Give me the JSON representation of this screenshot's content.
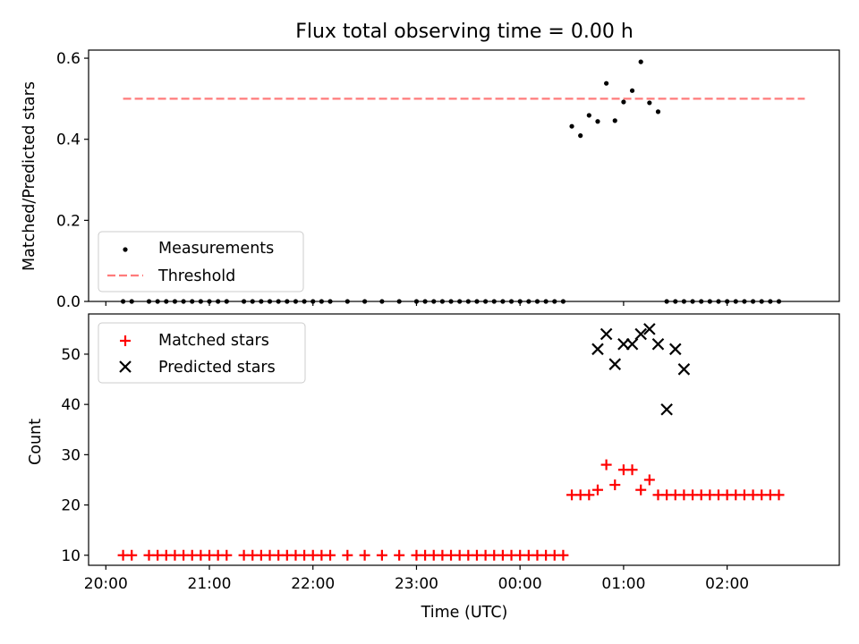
{
  "title": "Flux total observing time = 0.00 h",
  "colors": {
    "measurements": "#000000",
    "threshold": "#ff7b7b",
    "matched": "#ff0000",
    "predicted": "#000000",
    "axes": "#000000"
  },
  "chart_data": [
    {
      "type": "scatter",
      "panel": "top",
      "ylabel": "Matched/Predicted stars",
      "ylim": [
        0,
        0.62
      ],
      "yticks": [
        0.0,
        0.2,
        0.4,
        0.6
      ],
      "ytick_labels": [
        "0.0",
        "0.2",
        "0.4",
        "0.6"
      ],
      "legend_loc": "lower-left",
      "series": [
        {
          "name": "Measurements",
          "marker": "dot",
          "x": [
            "20:10",
            "20:15",
            "20:25",
            "20:30",
            "20:35",
            "20:40",
            "20:45",
            "20:50",
            "20:55",
            "21:00",
            "21:05",
            "21:10",
            "21:20",
            "21:25",
            "21:30",
            "21:35",
            "21:40",
            "21:45",
            "21:50",
            "21:55",
            "22:00",
            "22:05",
            "22:10",
            "22:20",
            "22:30",
            "22:40",
            "22:50",
            "23:00",
            "23:05",
            "23:10",
            "23:15",
            "23:20",
            "23:25",
            "23:30",
            "23:35",
            "23:40",
            "23:45",
            "23:50",
            "23:55",
            "00:00",
            "00:05",
            "00:10",
            "00:15",
            "00:20",
            "00:25",
            "00:30",
            "00:35",
            "00:40",
            "00:45",
            "00:50",
            "00:55",
            "01:00",
            "01:05",
            "01:10",
            "01:15",
            "01:20",
            "01:25",
            "01:30",
            "01:35",
            "01:40",
            "01:45",
            "01:50",
            "01:55",
            "02:00",
            "02:05",
            "02:10",
            "02:15",
            "02:20",
            "02:25",
            "02:30"
          ],
          "y": [
            0,
            0,
            0,
            0,
            0,
            0,
            0,
            0,
            0,
            0,
            0,
            0,
            0,
            0,
            0,
            0,
            0,
            0,
            0,
            0,
            0,
            0,
            0,
            0,
            0,
            0,
            0,
            0,
            0,
            0,
            0,
            0,
            0,
            0,
            0,
            0,
            0,
            0,
            0,
            0,
            0,
            0,
            0,
            0,
            0,
            0.432,
            0.409,
            0.459,
            0.444,
            0.538,
            0.446,
            0.492,
            0.52,
            0.591,
            0.49,
            0.468,
            0,
            0,
            0,
            0,
            0,
            0,
            0,
            0,
            0,
            0,
            0,
            0,
            0,
            0
          ]
        },
        {
          "name": "Threshold",
          "style": "dashed",
          "x": [
            "20:10",
            "02:45"
          ],
          "y": [
            0.5,
            0.5
          ]
        }
      ]
    },
    {
      "type": "scatter",
      "panel": "bottom",
      "xlabel": "Time (UTC)",
      "ylabel": "Count",
      "ylim": [
        8,
        58
      ],
      "yticks": [
        10,
        20,
        30,
        40,
        50
      ],
      "ytick_labels": [
        "10",
        "20",
        "30",
        "40",
        "50"
      ],
      "xticks": [
        "20:00",
        "21:00",
        "22:00",
        "23:00",
        "00:00",
        "01:00",
        "02:00"
      ],
      "xtick_labels": [
        "20:00",
        "21:00",
        "22:00",
        "23:00",
        "00:00",
        "01:00",
        "02:00"
      ],
      "x_range": [
        "19:50",
        "03:05"
      ],
      "legend_loc": "upper-left",
      "series": [
        {
          "name": "Matched stars",
          "marker": "plus",
          "x": [
            "20:10",
            "20:15",
            "20:25",
            "20:30",
            "20:35",
            "20:40",
            "20:45",
            "20:50",
            "20:55",
            "21:00",
            "21:05",
            "21:10",
            "21:20",
            "21:25",
            "21:30",
            "21:35",
            "21:40",
            "21:45",
            "21:50",
            "21:55",
            "22:00",
            "22:05",
            "22:10",
            "22:20",
            "22:30",
            "22:40",
            "22:50",
            "23:00",
            "23:05",
            "23:10",
            "23:15",
            "23:20",
            "23:25",
            "23:30",
            "23:35",
            "23:40",
            "23:45",
            "23:50",
            "23:55",
            "00:00",
            "00:05",
            "00:10",
            "00:15",
            "00:20",
            "00:25",
            "00:30",
            "00:35",
            "00:40",
            "00:45",
            "00:50",
            "00:55",
            "01:00",
            "01:05",
            "01:10",
            "01:15",
            "01:20",
            "01:25",
            "01:30",
            "01:35",
            "01:40",
            "01:45",
            "01:50",
            "01:55",
            "02:00",
            "02:05",
            "02:10",
            "02:15",
            "02:20",
            "02:25",
            "02:30"
          ],
          "y": [
            10,
            10,
            10,
            10,
            10,
            10,
            10,
            10,
            10,
            10,
            10,
            10,
            10,
            10,
            10,
            10,
            10,
            10,
            10,
            10,
            10,
            10,
            10,
            10,
            10,
            10,
            10,
            10,
            10,
            10,
            10,
            10,
            10,
            10,
            10,
            10,
            10,
            10,
            10,
            10,
            10,
            10,
            10,
            10,
            10,
            22,
            22,
            22,
            23,
            28,
            24,
            27,
            27,
            23,
            25,
            22,
            22,
            22,
            22,
            22,
            22,
            22,
            22,
            22,
            22,
            22,
            22,
            22,
            22,
            22
          ]
        },
        {
          "name": "Predicted stars",
          "marker": "x",
          "x": [
            "00:45",
            "00:50",
            "00:55",
            "01:00",
            "01:05",
            "01:10",
            "01:15",
            "01:20",
            "01:25",
            "01:30",
            "01:35"
          ],
          "y": [
            51,
            54,
            48,
            52,
            52,
            54,
            55,
            52,
            39,
            51,
            47
          ]
        }
      ]
    }
  ]
}
